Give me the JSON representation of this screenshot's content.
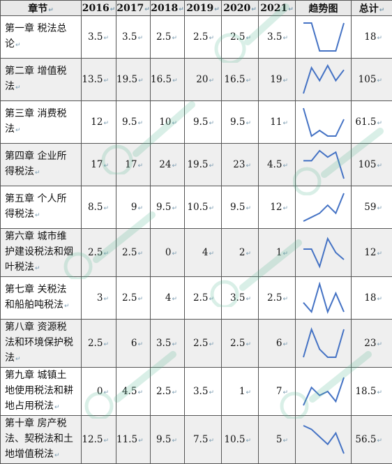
{
  "table": {
    "headers": [
      "章节",
      "2016",
      "2017",
      "2018",
      "2019",
      "2020",
      "2021",
      "趋势图",
      "总计"
    ],
    "rows": [
      {
        "chapter": [
          "第一章 税法总",
          "论"
        ],
        "values": [
          "3.5",
          "3.5",
          "2.5",
          "2.5",
          "2.5",
          "3.5"
        ],
        "total": "18"
      },
      {
        "chapter": [
          "第二章 增值税",
          "法"
        ],
        "values": [
          "13.5",
          "19.5",
          "16.5",
          "20",
          "16.5",
          "19"
        ],
        "total": "105"
      },
      {
        "chapter": [
          "第三章 消费税",
          "法"
        ],
        "values": [
          "12",
          "9.5",
          "10",
          "9.5",
          "9.5",
          "11"
        ],
        "total": "61.5"
      },
      {
        "chapter": [
          "第四章 企业所",
          "得税法"
        ],
        "values": [
          "17",
          "17",
          "24",
          "19.5",
          "23",
          "4.5"
        ],
        "total": "105"
      },
      {
        "chapter": [
          "第五章 个人所",
          "得税法"
        ],
        "values": [
          "8.5",
          "9",
          "9.5",
          "10.5",
          "9.5",
          "12"
        ],
        "total": "59"
      },
      {
        "chapter": [
          "第六章 城市维",
          "护建设税法和烟",
          "叶税法"
        ],
        "values": [
          "2.5",
          "2.5",
          "0",
          "4",
          "2",
          "1"
        ],
        "total": "12"
      },
      {
        "chapter": [
          "第七章 关税法",
          "和船舶吨税法"
        ],
        "values": [
          "3",
          "2.5",
          "4",
          "2.5",
          "3.5",
          "2.5"
        ],
        "total": "18"
      },
      {
        "chapter": [
          "第八章 资源税",
          "法和环境保护税",
          "法"
        ],
        "values": [
          "2.5",
          "6",
          "3.5",
          "2.5",
          "2.5",
          "6"
        ],
        "total": "23"
      },
      {
        "chapter": [
          "第九章 城镇土",
          "地使用税法和耕",
          "地占用税法"
        ],
        "values": [
          "0",
          "4.5",
          "2.5",
          "3.5",
          "1",
          "7"
        ],
        "total": "18.5"
      },
      {
        "chapter": [
          "第十章 房产税",
          "法、契税法和土",
          "地增值税法"
        ],
        "values": [
          "12.5",
          "11.5",
          "9.5",
          "7.5",
          "10.5",
          "5"
        ],
        "total": "56.5"
      }
    ]
  },
  "colors": {
    "sparkline": "#4472c4",
    "header_bg": "#e9e9e9",
    "shade_bg": "#efefef",
    "watermark": "#57b894"
  },
  "paragraph_mark": "↵"
}
